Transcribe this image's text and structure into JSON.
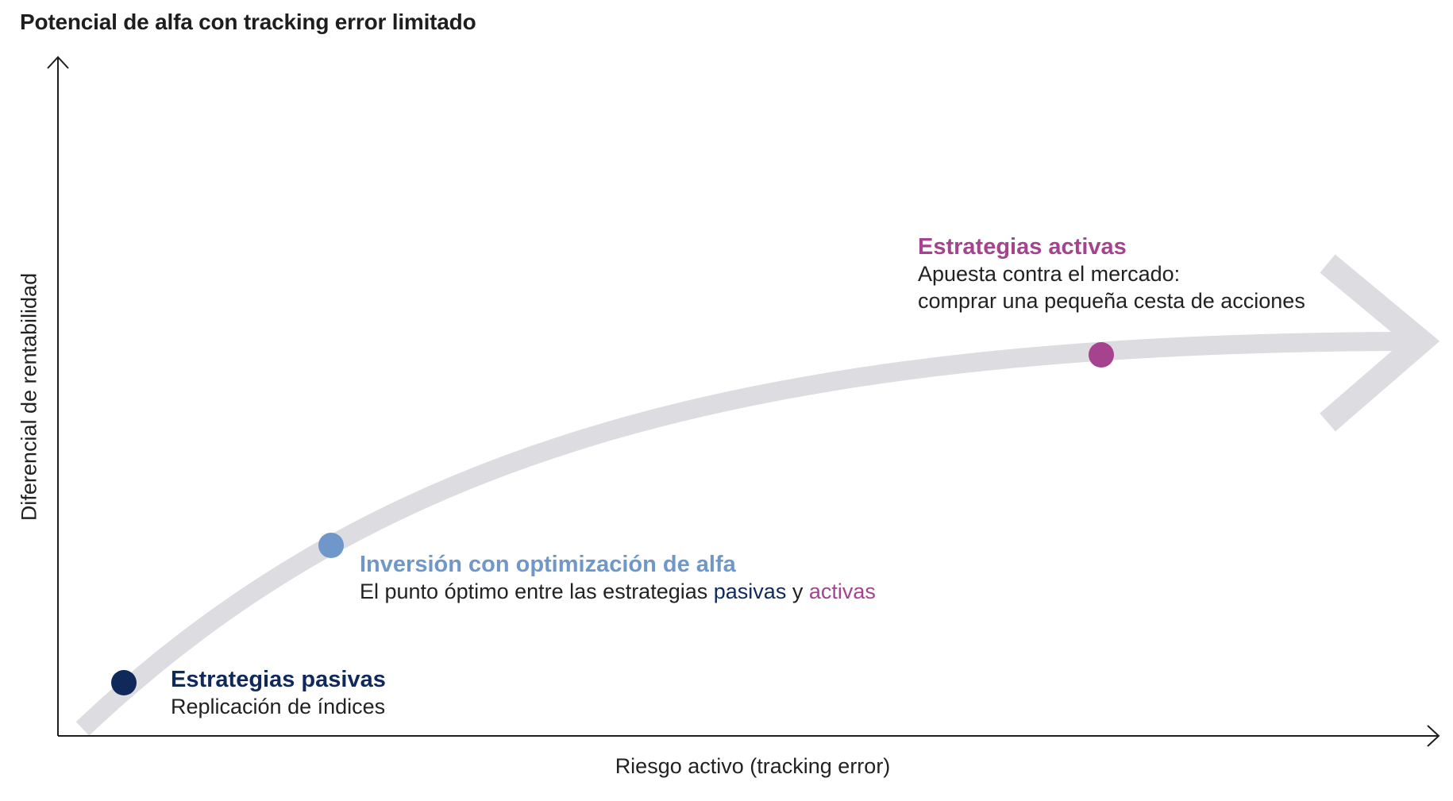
{
  "title": "Potencial de alfa con tracking error limitado",
  "axes": {
    "x_label": "Riesgo activo (tracking error)",
    "y_label": "Diferencial de rentabilidad"
  },
  "points": {
    "passive": {
      "heading": "Estrategias pasivas",
      "description": "Replicación de índices",
      "color": "#10295b"
    },
    "optimal": {
      "heading": "Inversión con optimización de alfa",
      "description_prefix": "El punto óptimo entre las estrategias",
      "description_passive": "pasivas",
      "description_join": "y",
      "description_active": "activas",
      "color": "#6f97c9"
    },
    "active": {
      "heading": "Estrategias activas",
      "description_line1": "Apuesta contra el mercado:",
      "description_line2": "comprar una pequeña cesta de acciones",
      "color": "#a5438f"
    }
  },
  "colors": {
    "curve": "#dcdce1",
    "axis": "#1e1e1e",
    "text": "#222222"
  }
}
